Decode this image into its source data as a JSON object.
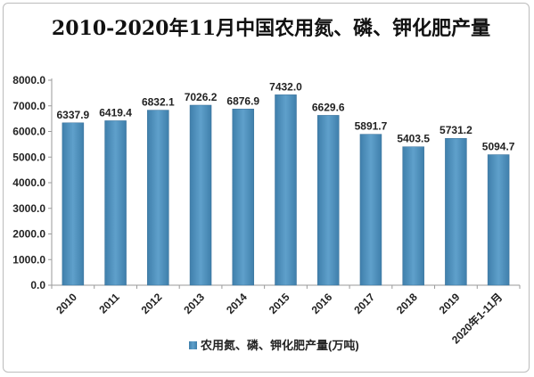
{
  "chart_data": {
    "type": "bar",
    "title": "2010-2020年11月中国农用氮、磷、钾化肥产量",
    "categories": [
      "2010",
      "2011",
      "2012",
      "2013",
      "2014",
      "2015",
      "2016",
      "2017",
      "2018",
      "2019",
      "2020年1-11月"
    ],
    "series": [
      {
        "name": "农用氮、磷、钾化肥产量(万吨)",
        "values": [
          6337.9,
          6419.4,
          6832.1,
          7026.2,
          6876.9,
          7432.0,
          6629.6,
          5891.7,
          5403.5,
          5731.2,
          5094.7
        ],
        "labels": [
          "6337.9",
          "6419.4",
          "6832.1",
          "7026.2",
          "6876.9",
          "7432.0",
          "6629.6",
          "5891.7",
          "5403.5",
          "5731.2",
          "5094.7"
        ]
      }
    ],
    "y_ticks": [
      "0.0",
      "1000.0",
      "2000.0",
      "3000.0",
      "4000.0",
      "5000.0",
      "6000.0",
      "7000.0",
      "8000.0"
    ],
    "ylim": [
      0,
      8000
    ],
    "grid": false,
    "legend_position": "bottom",
    "bar_color": "#4f8fba"
  }
}
